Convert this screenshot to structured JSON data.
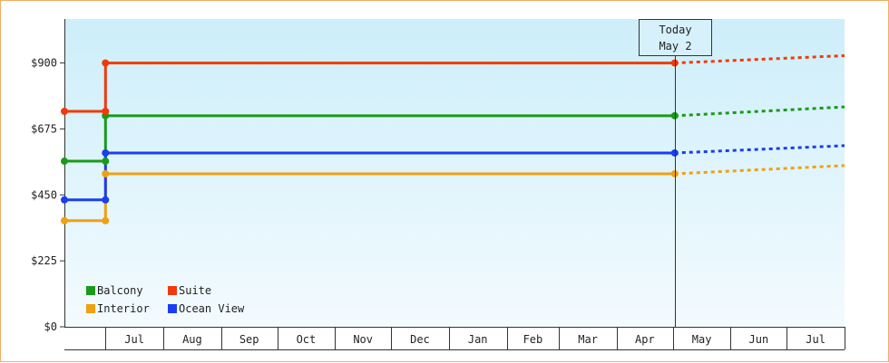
{
  "chart_data": {
    "type": "line",
    "subtype": "step",
    "y_ticks": [
      "$0",
      "$225",
      "$450",
      "$675",
      "$900"
    ],
    "ylim": [
      0,
      1050
    ],
    "x_labels": [
      "Jul",
      "Aug",
      "Sep",
      "Oct",
      "Nov",
      "Dec",
      "Jan",
      "Feb",
      "Mar",
      "Apr",
      "May",
      "Jun",
      "Jul"
    ],
    "today_label": [
      "Today",
      "May 2"
    ],
    "grid": false,
    "legend_position": "bottom-left",
    "series": [
      {
        "name": "Balcony",
        "color": "#1a9a1a",
        "values": [
          {
            "x": "2024-06-09",
            "y": 565
          },
          {
            "x": "2024-07-01",
            "y": 565
          },
          {
            "x": "2024-07-01",
            "y": 720
          },
          {
            "x": "2025-05-02",
            "y": 720
          }
        ],
        "forecast": [
          {
            "x": "2025-05-02",
            "y": 720
          },
          {
            "x": "2025-08-01",
            "y": 750
          }
        ]
      },
      {
        "name": "Suite",
        "color": "#f03a0a",
        "values": [
          {
            "x": "2024-06-09",
            "y": 735
          },
          {
            "x": "2024-07-01",
            "y": 735
          },
          {
            "x": "2024-07-01",
            "y": 900
          },
          {
            "x": "2025-05-02",
            "y": 900
          }
        ],
        "forecast": [
          {
            "x": "2025-05-02",
            "y": 900
          },
          {
            "x": "2025-08-01",
            "y": 925
          }
        ]
      },
      {
        "name": "Interior",
        "color": "#f0a010",
        "values": [
          {
            "x": "2024-06-09",
            "y": 362
          },
          {
            "x": "2024-07-01",
            "y": 362
          },
          {
            "x": "2024-07-01",
            "y": 522
          },
          {
            "x": "2025-05-02",
            "y": 522
          }
        ],
        "forecast": [
          {
            "x": "2025-05-02",
            "y": 522
          },
          {
            "x": "2025-08-01",
            "y": 550
          }
        ]
      },
      {
        "name": "Ocean View",
        "color": "#1a3ef0",
        "values": [
          {
            "x": "2024-06-09",
            "y": 433
          },
          {
            "x": "2024-07-01",
            "y": 433
          },
          {
            "x": "2024-07-01",
            "y": 593
          },
          {
            "x": "2025-05-02",
            "y": 593
          }
        ],
        "forecast": [
          {
            "x": "2025-05-02",
            "y": 593
          },
          {
            "x": "2025-08-01",
            "y": 618
          }
        ]
      }
    ]
  }
}
